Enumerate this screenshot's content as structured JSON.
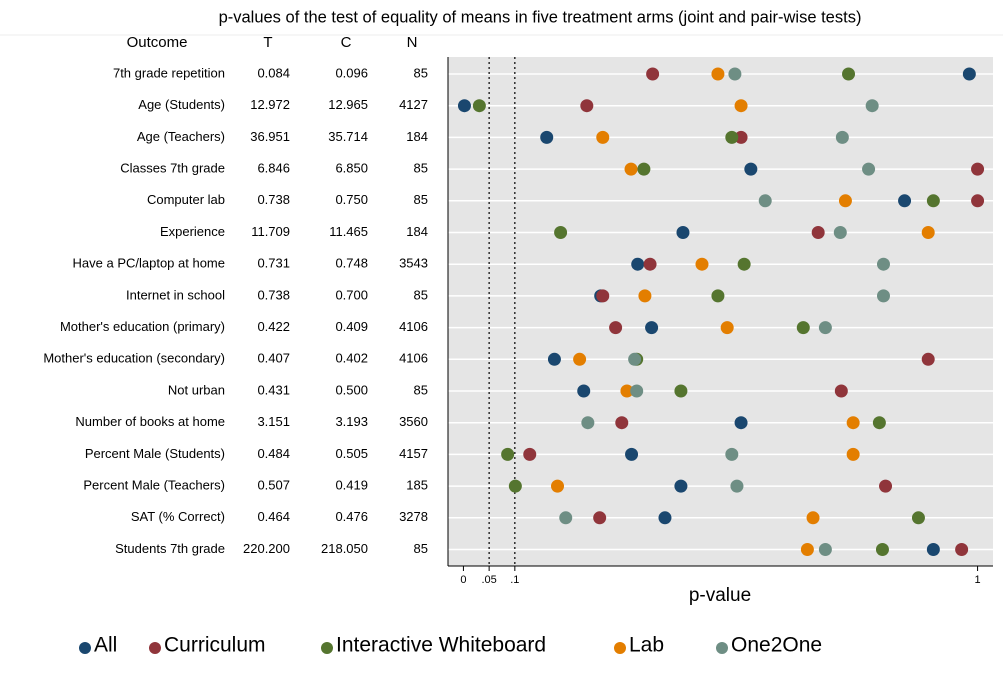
{
  "chart_data": {
    "type": "dot",
    "title": "p-values of the test of equality of means in five treatment arms (joint and pair-wise tests)",
    "columns": [
      "Outcome",
      "T",
      "C",
      "N"
    ],
    "categories": [
      "7th grade repetition",
      "Age (Students)",
      "Age (Teachers)",
      "Classes 7th grade",
      "Computer lab",
      "Experience",
      "Have a PC/laptop at home",
      "Internet in school",
      "Mother's education (primary)",
      "Mother's education (secondary)",
      "Not urban",
      "Number of books at home",
      "Percent Male (Students)",
      "Percent Male (Teachers)",
      "SAT (% Correct)",
      "Students 7th grade"
    ],
    "table": {
      "T": [
        "0.084",
        "12.972",
        "36.951",
        "6.846",
        "0.738",
        "11.709",
        "0.731",
        "0.738",
        "0.422",
        "0.407",
        "0.431",
        "3.151",
        "0.484",
        "0.507",
        "0.464",
        "220.200"
      ],
      "C": [
        "0.096",
        "12.965",
        "35.714",
        "6.850",
        "0.750",
        "11.465",
        "0.748",
        "0.700",
        "0.409",
        "0.402",
        "0.500",
        "3.193",
        "0.505",
        "0.419",
        "0.476",
        "218.050"
      ],
      "N": [
        85,
        4127,
        184,
        85,
        85,
        184,
        3543,
        85,
        4106,
        4106,
        85,
        3560,
        4157,
        185,
        3278,
        85
      ]
    },
    "series": [
      {
        "name": "All",
        "color": "#1a476f",
        "values": [
          0.984,
          0.002,
          0.162,
          0.559,
          0.858,
          0.427,
          0.339,
          0.267,
          0.366,
          0.177,
          0.234,
          0.54,
          0.327,
          0.423,
          0.392,
          0.914
        ]
      },
      {
        "name": "Curriculum",
        "color": "#90353b",
        "values": [
          0.368,
          0.24,
          0.54,
          1.0,
          1.0,
          0.69,
          0.363,
          0.271,
          0.296,
          0.904,
          0.735,
          0.308,
          0.129,
          0.821,
          0.265,
          0.969
        ]
      },
      {
        "name": "Interactive Whiteboard",
        "color": "#55752f",
        "values": [
          0.749,
          0.031,
          0.522,
          0.351,
          0.914,
          0.189,
          0.546,
          0.495,
          0.661,
          0.337,
          0.423,
          0.809,
          0.086,
          0.101,
          0.885,
          0.815
        ]
      },
      {
        "name": "Lab",
        "color": "#e37e00",
        "values": [
          0.495,
          0.54,
          0.271,
          0.326,
          0.743,
          0.904,
          0.464,
          0.353,
          0.513,
          0.226,
          0.318,
          0.758,
          0.758,
          0.183,
          0.68,
          0.669
        ]
      },
      {
        "name": "One2One",
        "color": "#6e8e84",
        "values": [
          0.528,
          0.795,
          0.737,
          0.788,
          0.587,
          0.733,
          0.817,
          0.817,
          0.704,
          0.333,
          0.337,
          0.242,
          0.522,
          0.532,
          0.199,
          0.704
        ]
      }
    ],
    "xlim": [
      -0.03,
      1.03
    ],
    "xticks": [
      0,
      {
        "value": 0.05,
        "label": ".05"
      },
      {
        "value": 0.1,
        "label": ".1"
      },
      1
    ],
    "reference_lines": [
      0.05,
      0.1
    ],
    "xlabel": "p-value",
    "legend": "bottom"
  }
}
